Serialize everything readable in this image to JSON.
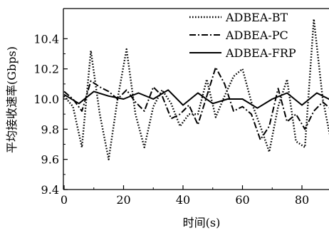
{
  "chart_data": {
    "type": "line",
    "title": "",
    "xlabel": "时间(s)",
    "ylabel": "平均接收速率(Gbps)",
    "xlim": [
      0,
      92
    ],
    "ylim": [
      9.4,
      10.6
    ],
    "grid": false,
    "legend_position": "top-right",
    "x_ticks": [
      0,
      20,
      40,
      60,
      80
    ],
    "x_tick_labels": [
      "0",
      "20",
      "40",
      "60",
      "80"
    ],
    "y_ticks": [
      9.4,
      9.6,
      9.8,
      10.0,
      10.2,
      10.4
    ],
    "y_tick_labels": [
      "9.4",
      "9.6",
      "9.8",
      "10.0",
      "10.2",
      "10.4"
    ],
    "series": [
      {
        "name": "ADBEA-BT",
        "style": "dotted",
        "color": "#000000",
        "x": [
          0,
          3,
          6,
          9,
          12,
          15,
          18,
          21,
          24,
          27,
          30,
          33,
          36,
          39,
          42,
          45,
          48,
          51,
          54,
          57,
          60,
          63,
          66,
          69,
          72,
          75,
          78,
          81,
          84,
          87,
          90,
          92
        ],
        "y": [
          10.02,
          9.95,
          9.68,
          10.32,
          9.9,
          9.6,
          10.0,
          10.33,
          9.9,
          9.68,
          9.95,
          10.06,
          9.97,
          9.82,
          9.9,
          9.9,
          10.13,
          9.88,
          10.02,
          10.15,
          10.2,
          9.98,
          9.82,
          9.65,
          9.95,
          10.13,
          9.72,
          9.68,
          10.53,
          10.0,
          9.7,
          9.7
        ]
      },
      {
        "name": "ADBEA-PC",
        "style": "dashdot",
        "color": "#000000",
        "x": [
          0,
          3,
          6,
          9,
          12,
          15,
          18,
          21,
          24,
          27,
          30,
          33,
          36,
          39,
          42,
          45,
          48,
          51,
          54,
          57,
          60,
          63,
          66,
          69,
          72,
          75,
          78,
          81,
          84,
          87,
          90,
          92
        ],
        "y": [
          10.05,
          10.0,
          9.92,
          10.12,
          10.08,
          10.05,
          10.0,
          10.06,
          9.98,
          9.92,
          10.08,
          10.02,
          9.87,
          9.9,
          9.96,
          9.83,
          10.02,
          10.21,
          10.1,
          9.92,
          9.95,
          9.9,
          9.73,
          9.82,
          10.07,
          9.85,
          9.9,
          9.8,
          9.92,
          9.98,
          9.93,
          9.93
        ]
      },
      {
        "name": "ADBEA-FRP",
        "style": "solid",
        "color": "#000000",
        "x": [
          0,
          5,
          10,
          15,
          20,
          25,
          30,
          35,
          40,
          45,
          50,
          55,
          60,
          65,
          70,
          75,
          80,
          85,
          90,
          92
        ],
        "y": [
          10.03,
          9.97,
          10.05,
          10.02,
          10.0,
          10.04,
          10.0,
          10.06,
          9.96,
          10.04,
          9.97,
          10.0,
          10.0,
          9.94,
          10.0,
          10.04,
          9.96,
          10.04,
          9.99,
          9.98
        ]
      }
    ]
  }
}
